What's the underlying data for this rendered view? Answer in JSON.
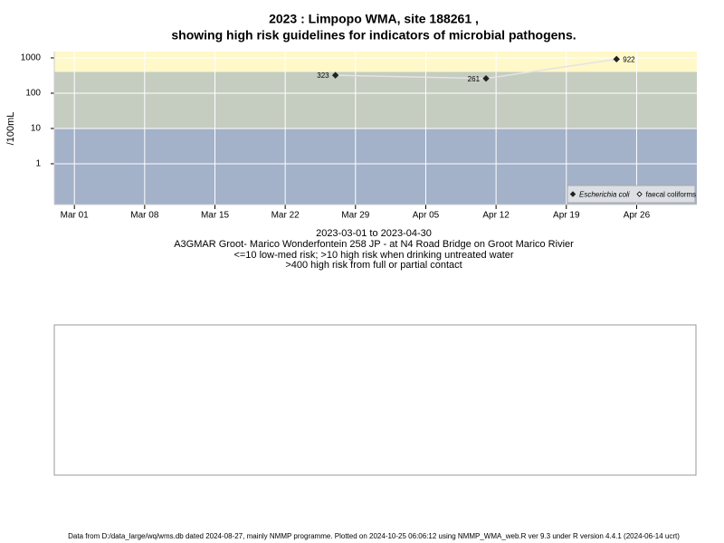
{
  "chart_data": {
    "type": "scatter",
    "title": "2023 : Limpopo WMA, site 188261 ,",
    "subtitle": "showing high risk guidelines for indicators of microbial pathogens.",
    "y_label": "/100mL",
    "notes": [
      "2023-03-01 to 2023-04-30",
      "A3GMAR Groot- Marico Wonderfontein 258 JP - at N4 Road Bridge on Groot Marico Rivier",
      "<=10 low-med risk; >10 high risk when drinking untreated water",
      ">400 high risk from full or partial contact"
    ],
    "footer": "Data from D:/data_large/wq/wms.db dated 2024-08-27, mainly NMMP programme. Plotted on 2024-10-25 06:06:12 using NMMP_WMA_web.R ver 9.3 under R version 4.4.1 (2024-06-14 ucrt)",
    "x": [
      "2023-03-27",
      "2023-04-11",
      "2023-04-24"
    ],
    "series": [
      {
        "name": "Escherichia coli",
        "color": "#222222",
        "fill": "#222222",
        "font_style": "italic",
        "line_color": "#e4e4e4",
        "values": [
          323,
          261,
          922
        ]
      },
      {
        "name": "faecal coliforms",
        "color": "#222222",
        "fill": "#ffffff",
        "font_style": "normal",
        "line_color": "#e4e4e4",
        "values": [
          null,
          null,
          null
        ]
      }
    ],
    "log_y": true,
    "xlim": [
      "2023-02-27",
      "2023-05-02"
    ],
    "ylim": [
      0.07,
      1510
    ],
    "yticks": [
      1,
      10,
      100,
      1000
    ],
    "xticks": [
      {
        "value": "2023-03-01",
        "label": "Mar 01"
      },
      {
        "value": "2023-03-08",
        "label": "Mar 08"
      },
      {
        "value": "2023-03-15",
        "label": "Mar 15"
      },
      {
        "value": "2023-03-22",
        "label": "Mar 22"
      },
      {
        "value": "2023-03-29",
        "label": "Mar 29"
      },
      {
        "value": "2023-04-05",
        "label": "Apr 05"
      },
      {
        "value": "2023-04-12",
        "label": "Apr 12"
      },
      {
        "value": "2023-04-19",
        "label": "Apr 19"
      },
      {
        "value": "2023-04-26",
        "label": "Apr 26"
      }
    ],
    "risk_thresholds": [
      10,
      400
    ],
    "band_colors": [
      "#a3b1c9",
      "#c5ccc0",
      "#fff8c9"
    ],
    "grid": true,
    "grid_color": "#ffffff",
    "legend": "bottom right"
  }
}
